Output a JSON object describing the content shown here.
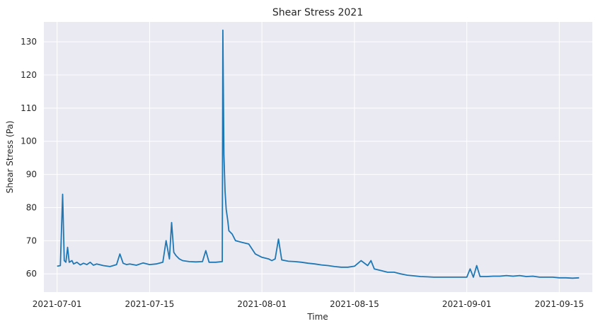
{
  "chart_data": {
    "type": "line",
    "title": "Shear Stress 2021",
    "xlabel": "Time",
    "ylabel": "Shear Stress (Pa)",
    "xlim": [
      "2021-06-29",
      "2021-09-20"
    ],
    "ylim": [
      54.5,
      136
    ],
    "x_ticks": [
      "2021-07-01",
      "2021-07-15",
      "2021-08-01",
      "2021-08-15",
      "2021-09-01",
      "2021-09-15"
    ],
    "y_ticks": [
      60,
      70,
      80,
      90,
      100,
      110,
      120,
      130
    ],
    "grid": true,
    "background": "#eaeaf2",
    "line_color": "#1f77b4",
    "series": [
      {
        "x": [
          "2021-07-01",
          "2021-07-01T12:00",
          "2021-07-01T20:00",
          "2021-07-02T02:00",
          "2021-07-02T08:00",
          "2021-07-02T14:00",
          "2021-07-02T20:00",
          "2021-07-03T06:00",
          "2021-07-03T12:00",
          "2021-07-04",
          "2021-07-04T12:00",
          "2021-07-05",
          "2021-07-05T12:00",
          "2021-07-06",
          "2021-07-06T12:00",
          "2021-07-07",
          "2021-07-08",
          "2021-07-09",
          "2021-07-10",
          "2021-07-10T12:00",
          "2021-07-11",
          "2021-07-11T12:00",
          "2021-07-12",
          "2021-07-13",
          "2021-07-14",
          "2021-07-15",
          "2021-07-16",
          "2021-07-17",
          "2021-07-17T12:00",
          "2021-07-18",
          "2021-07-18T08:00",
          "2021-07-18T16:00",
          "2021-07-19",
          "2021-07-19T12:00",
          "2021-07-20",
          "2021-07-21",
          "2021-07-22",
          "2021-07-23",
          "2021-07-23T12:00",
          "2021-07-24",
          "2021-07-25",
          "2021-07-26",
          "2021-07-26T02:00",
          "2021-07-26T06:00",
          "2021-07-26T10:00",
          "2021-07-26T14:00",
          "2021-07-26T20:00",
          "2021-07-27",
          "2021-07-27T12:00",
          "2021-07-28",
          "2021-07-29",
          "2021-07-30",
          "2021-07-31",
          "2021-08-01",
          "2021-08-02",
          "2021-08-02T12:00",
          "2021-08-03",
          "2021-08-03T12:00",
          "2021-08-04",
          "2021-08-05",
          "2021-08-06",
          "2021-08-07",
          "2021-08-08",
          "2021-08-09",
          "2021-08-10",
          "2021-08-11",
          "2021-08-12",
          "2021-08-13",
          "2021-08-14",
          "2021-08-15",
          "2021-08-16",
          "2021-08-17",
          "2021-08-17T12:00",
          "2021-08-18",
          "2021-08-19",
          "2021-08-20",
          "2021-08-21",
          "2021-08-22",
          "2021-08-23",
          "2021-08-24",
          "2021-08-25",
          "2021-08-26",
          "2021-08-27",
          "2021-08-28",
          "2021-08-29",
          "2021-08-29T12:00",
          "2021-08-30",
          "2021-08-31",
          "2021-09-01",
          "2021-09-01T12:00",
          "2021-09-02",
          "2021-09-02T12:00",
          "2021-09-03",
          "2021-09-04",
          "2021-09-05",
          "2021-09-06",
          "2021-09-07",
          "2021-09-08",
          "2021-09-09",
          "2021-09-10",
          "2021-09-11",
          "2021-09-12",
          "2021-09-13",
          "2021-09-14",
          "2021-09-15",
          "2021-09-16",
          "2021-09-17",
          "2021-09-18"
        ],
        "values": [
          62.3,
          62.5,
          84.0,
          64.0,
          63.5,
          68.0,
          63.5,
          64.0,
          63.0,
          63.5,
          62.7,
          63.2,
          62.8,
          63.5,
          62.6,
          63.0,
          62.5,
          62.2,
          62.8,
          66.0,
          63.2,
          62.8,
          63.0,
          62.6,
          63.3,
          62.8,
          63.0,
          63.5,
          70.0,
          64.5,
          75.5,
          66.5,
          65.5,
          64.5,
          64.0,
          63.7,
          63.6,
          63.7,
          67.0,
          63.5,
          63.5,
          63.7,
          133.5,
          96.0,
          85.0,
          79.5,
          76.0,
          73.0,
          72.0,
          70.0,
          69.5,
          69.0,
          66.0,
          65.0,
          64.5,
          64.0,
          64.5,
          70.5,
          64.2,
          63.8,
          63.7,
          63.5,
          63.2,
          63.0,
          62.7,
          62.5,
          62.2,
          62.0,
          62.0,
          62.3,
          64.0,
          62.5,
          64.0,
          61.5,
          61.0,
          60.5,
          60.5,
          60.0,
          59.6,
          59.4,
          59.2,
          59.1,
          59.0,
          59.0,
          59.0,
          59.0,
          59.0,
          59.0,
          59.0,
          61.5,
          59.0,
          62.5,
          59.2,
          59.2,
          59.3,
          59.3,
          59.5,
          59.3,
          59.5,
          59.2,
          59.3,
          59.0,
          59.0,
          59.0,
          58.8,
          58.8,
          58.7,
          58.8
        ]
      }
    ]
  }
}
